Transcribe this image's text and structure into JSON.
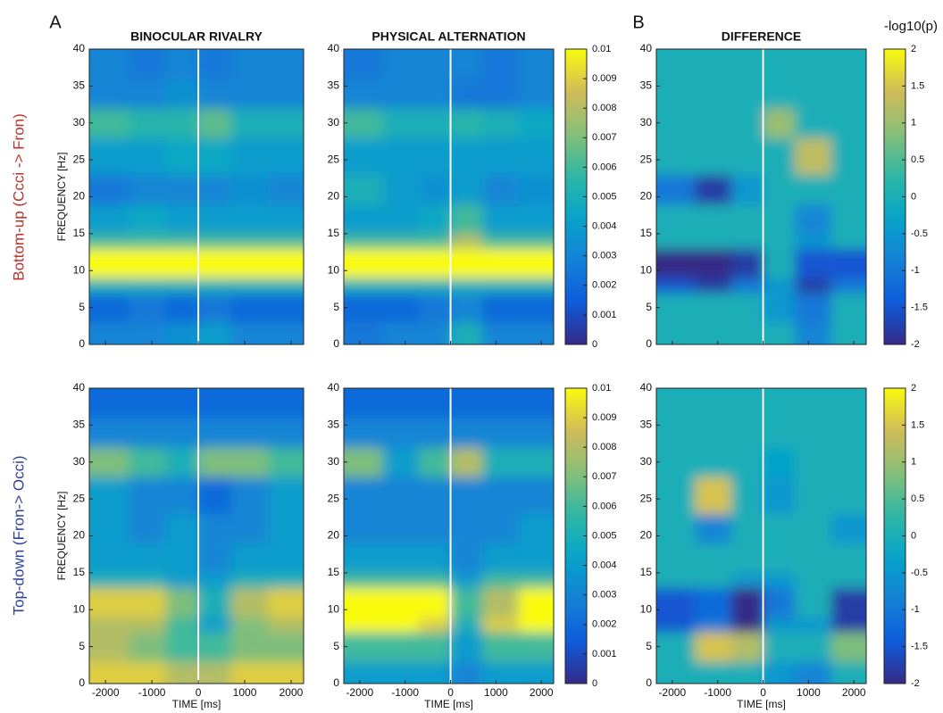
{
  "panel_labels": [
    "A",
    "B"
  ],
  "colorbar_label": "-log10(p)",
  "row_labels": [
    "Bottom-up (Ccci -> Fron)",
    "Top-down (Fron-> Occi)"
  ],
  "chart_data": [
    {
      "type": "heatmap",
      "title": "BINOCULAR RIVALRY",
      "ylabel": "FREQUENCY [Hz]",
      "colormap": "parula",
      "xlim": [
        -2350,
        2270
      ],
      "ylim": [
        0,
        40
      ],
      "xticks": [
        -2000,
        -1000,
        0,
        1000,
        2000
      ],
      "yticks": [
        0,
        5,
        10,
        15,
        20,
        25,
        30,
        35,
        40
      ],
      "vline": 0,
      "clim": [
        0,
        0.01
      ],
      "x_bins": [
        -2350,
        -1500,
        -700,
        0,
        700,
        1500,
        2270
      ],
      "y_bins": [
        0,
        3,
        7,
        9,
        13,
        15,
        19,
        23,
        28,
        32,
        36,
        40
      ],
      "z": [
        [
          0.003,
          0.003,
          0.0035,
          0.004,
          0.003,
          0.003
        ],
        [
          0.002,
          0.0025,
          0.002,
          0.0025,
          0.002,
          0.002
        ],
        [
          0.005,
          0.005,
          0.005,
          0.005,
          0.005,
          0.005
        ],
        [
          0.01,
          0.01,
          0.01,
          0.01,
          0.01,
          0.01
        ],
        [
          0.006,
          0.006,
          0.006,
          0.006,
          0.006,
          0.006
        ],
        [
          0.004,
          0.0045,
          0.004,
          0.004,
          0.004,
          0.004
        ],
        [
          0.0025,
          0.003,
          0.003,
          0.003,
          0.0035,
          0.003
        ],
        [
          0.004,
          0.004,
          0.0045,
          0.0045,
          0.004,
          0.004
        ],
        [
          0.006,
          0.0055,
          0.0055,
          0.0065,
          0.005,
          0.005
        ],
        [
          0.003,
          0.003,
          0.0035,
          0.003,
          0.003,
          0.003
        ],
        [
          0.003,
          0.0025,
          0.003,
          0.0025,
          0.003,
          0.003
        ]
      ]
    },
    {
      "type": "heatmap",
      "title": "PHYSICAL ALTERNATION",
      "colormap": "parula",
      "xlim": [
        -2350,
        2270
      ],
      "ylim": [
        0,
        40
      ],
      "xticks": [
        -2000,
        -1000,
        0,
        1000,
        2000
      ],
      "yticks": [
        0,
        5,
        10,
        15,
        20,
        25,
        30,
        35,
        40
      ],
      "vline": 0,
      "clim": [
        0,
        0.01
      ],
      "cticks": [
        0,
        0.001,
        0.002,
        0.003,
        0.004,
        0.005,
        0.006,
        0.007,
        0.008,
        0.009,
        0.01
      ],
      "x_bins": [
        -2350,
        -1500,
        -700,
        0,
        700,
        1500,
        2270
      ],
      "y_bins": [
        0,
        3,
        7,
        9,
        13,
        15,
        19,
        23,
        28,
        32,
        36,
        40
      ],
      "z": [
        [
          0.0025,
          0.003,
          0.003,
          0.005,
          0.003,
          0.003
        ],
        [
          0.002,
          0.002,
          0.0025,
          0.003,
          0.002,
          0.002
        ],
        [
          0.005,
          0.005,
          0.005,
          0.005,
          0.005,
          0.005
        ],
        [
          0.01,
          0.01,
          0.01,
          0.01,
          0.01,
          0.01
        ],
        [
          0.006,
          0.006,
          0.006,
          0.008,
          0.006,
          0.006
        ],
        [
          0.004,
          0.004,
          0.0045,
          0.006,
          0.004,
          0.004
        ],
        [
          0.005,
          0.004,
          0.0035,
          0.004,
          0.003,
          0.0035
        ],
        [
          0.004,
          0.004,
          0.004,
          0.004,
          0.004,
          0.004
        ],
        [
          0.006,
          0.005,
          0.005,
          0.0055,
          0.005,
          0.0045
        ],
        [
          0.003,
          0.003,
          0.003,
          0.0025,
          0.0025,
          0.003
        ],
        [
          0.0025,
          0.003,
          0.003,
          0.003,
          0.0025,
          0.003
        ]
      ]
    },
    {
      "type": "heatmap",
      "title": "DIFFERENCE",
      "colormap": "parula",
      "xlim": [
        -2350,
        2270
      ],
      "ylim": [
        0,
        40
      ],
      "xticks": [
        -2000,
        -1000,
        0,
        1000,
        2000
      ],
      "yticks": [
        0,
        5,
        10,
        15,
        20,
        25,
        30,
        35,
        40
      ],
      "vline": 0,
      "clim": [
        -2,
        2
      ],
      "cticks": [
        -2,
        -1.5,
        -1,
        -0.5,
        0,
        0.5,
        1,
        1.5,
        2
      ],
      "x_bins": [
        -2350,
        -1500,
        -700,
        0,
        700,
        1500,
        2270
      ],
      "y_bins": [
        0,
        3,
        7,
        9,
        13,
        15,
        19,
        23,
        28,
        32,
        36,
        40
      ],
      "z": [
        [
          0,
          0,
          0,
          0,
          -0.8,
          0
        ],
        [
          0,
          0,
          0,
          -0.5,
          -1,
          0
        ],
        [
          -1.5,
          -1.8,
          -1,
          -0.5,
          -1.8,
          -1
        ],
        [
          -2,
          -2,
          -1.8,
          0,
          -1.5,
          -1.5
        ],
        [
          0,
          0,
          0,
          0,
          -0.5,
          0
        ],
        [
          0,
          0,
          0,
          0,
          -0.8,
          0
        ],
        [
          -1,
          -1.8,
          -0.5,
          0,
          0,
          0
        ],
        [
          0,
          0,
          0,
          0,
          1.3,
          0
        ],
        [
          0,
          0,
          0,
          1,
          0,
          0
        ],
        [
          0,
          0,
          0,
          0,
          0,
          0
        ],
        [
          0,
          0,
          0,
          0,
          0,
          0
        ]
      ]
    },
    {
      "type": "heatmap",
      "xlabel": "TIME [ms]",
      "ylabel": "FREQUENCY [Hz]",
      "colormap": "parula",
      "xlim": [
        -2350,
        2270
      ],
      "ylim": [
        0,
        40
      ],
      "xticks": [
        -2000,
        -1000,
        0,
        1000,
        2000
      ],
      "yticks": [
        0,
        5,
        10,
        15,
        20,
        25,
        30,
        35,
        40
      ],
      "vline": 0,
      "clim": [
        0,
        0.01
      ],
      "x_bins": [
        -2350,
        -1500,
        -700,
        0,
        700,
        1500,
        2270
      ],
      "y_bins": [
        0,
        3,
        7,
        9,
        13,
        15,
        19,
        23,
        28,
        32,
        36,
        40
      ],
      "z": [
        [
          0.009,
          0.009,
          0.008,
          0.008,
          0.009,
          0.009
        ],
        [
          0.008,
          0.007,
          0.006,
          0.006,
          0.007,
          0.007
        ],
        [
          0.008,
          0.008,
          0.006,
          0.004,
          0.007,
          0.008
        ],
        [
          0.009,
          0.009,
          0.007,
          0.005,
          0.008,
          0.009
        ],
        [
          0.005,
          0.005,
          0.004,
          0.004,
          0.005,
          0.005
        ],
        [
          0.004,
          0.004,
          0.004,
          0.003,
          0.004,
          0.004
        ],
        [
          0.004,
          0.003,
          0.004,
          0.003,
          0.003,
          0.004
        ],
        [
          0.004,
          0.003,
          0.003,
          0.002,
          0.003,
          0.004
        ],
        [
          0.007,
          0.006,
          0.005,
          0.007,
          0.007,
          0.006
        ],
        [
          0.003,
          0.003,
          0.003,
          0.003,
          0.003,
          0.003
        ],
        [
          0.002,
          0.002,
          0.002,
          0.002,
          0.002,
          0.002
        ]
      ]
    },
    {
      "type": "heatmap",
      "xlabel": "TIME [ms]",
      "colormap": "parula",
      "xlim": [
        -2350,
        2270
      ],
      "ylim": [
        0,
        40
      ],
      "xticks": [
        -2000,
        -1000,
        0,
        1000,
        2000
      ],
      "yticks": [
        0,
        5,
        10,
        15,
        20,
        25,
        30,
        35,
        40
      ],
      "vline": 0,
      "clim": [
        0,
        0.01
      ],
      "cticks": [
        0,
        0.001,
        0.002,
        0.003,
        0.004,
        0.005,
        0.006,
        0.007,
        0.008,
        0.009,
        0.01
      ],
      "x_bins": [
        -2350,
        -1500,
        -700,
        0,
        700,
        1500,
        2270
      ],
      "y_bins": [
        0,
        3,
        7,
        9,
        13,
        15,
        19,
        23,
        28,
        32,
        36,
        40
      ],
      "z": [
        [
          0.004,
          0.004,
          0.004,
          0.003,
          0.004,
          0.004
        ],
        [
          0.006,
          0.006,
          0.006,
          0.004,
          0.006,
          0.006
        ],
        [
          0.01,
          0.01,
          0.009,
          0.005,
          0.009,
          0.01
        ],
        [
          0.01,
          0.01,
          0.01,
          0.006,
          0.008,
          0.01
        ],
        [
          0.006,
          0.006,
          0.006,
          0.004,
          0.006,
          0.006
        ],
        [
          0.004,
          0.004,
          0.004,
          0.003,
          0.004,
          0.004
        ],
        [
          0.003,
          0.003,
          0.003,
          0.003,
          0.003,
          0.004
        ],
        [
          0.003,
          0.003,
          0.003,
          0.003,
          0.003,
          0.003
        ],
        [
          0.007,
          0.004,
          0.006,
          0.008,
          0.005,
          0.005
        ],
        [
          0.003,
          0.003,
          0.003,
          0.003,
          0.003,
          0.003
        ],
        [
          0.002,
          0.002,
          0.002,
          0.002,
          0.002,
          0.002
        ]
      ]
    },
    {
      "type": "heatmap",
      "xlabel": "TIME [ms]",
      "colormap": "parula",
      "xlim": [
        -2350,
        2270
      ],
      "ylim": [
        0,
        40
      ],
      "xticks": [
        -2000,
        -1000,
        0,
        1000,
        2000
      ],
      "yticks": [
        0,
        5,
        10,
        15,
        20,
        25,
        30,
        35,
        40
      ],
      "vline": 0,
      "clim": [
        -2,
        2
      ],
      "cticks": [
        -2,
        -1.5,
        -1,
        -0.5,
        0,
        0.5,
        1,
        1.5,
        2
      ],
      "x_bins": [
        -2350,
        -1500,
        -700,
        0,
        700,
        1500,
        2270
      ],
      "y_bins": [
        0,
        3,
        7,
        9,
        13,
        15,
        19,
        23,
        28,
        32,
        36,
        40
      ],
      "z": [
        [
          0,
          0,
          0,
          -0.5,
          -0.8,
          0
        ],
        [
          0,
          1.5,
          1.2,
          0,
          0,
          0.8
        ],
        [
          -1.5,
          -1,
          -2,
          -0.5,
          -0.5,
          -1.8
        ],
        [
          -1.5,
          -1.2,
          -2,
          -1,
          0,
          -1.8
        ],
        [
          0,
          0,
          -0.5,
          -0.5,
          0,
          0
        ],
        [
          0,
          0,
          0,
          0,
          0,
          0
        ],
        [
          0,
          -0.8,
          0,
          0,
          0,
          -0.5
        ],
        [
          0,
          1.5,
          0,
          -0.5,
          0,
          0
        ],
        [
          0,
          0,
          0,
          -0.3,
          0,
          0
        ],
        [
          0,
          0,
          0,
          0,
          0,
          0
        ],
        [
          0,
          0,
          0,
          0,
          0,
          0
        ]
      ]
    }
  ]
}
